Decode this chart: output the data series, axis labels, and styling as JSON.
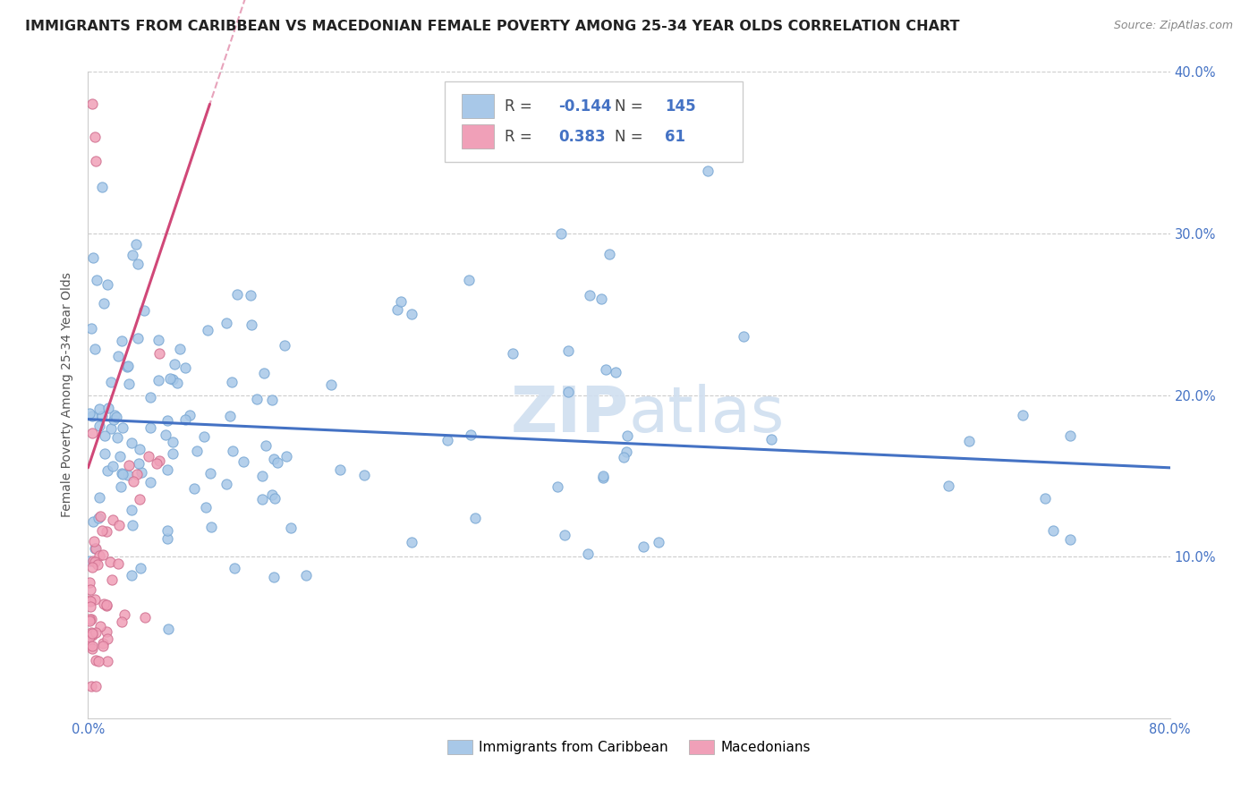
{
  "title": "IMMIGRANTS FROM CARIBBEAN VS MACEDONIAN FEMALE POVERTY AMONG 25-34 YEAR OLDS CORRELATION CHART",
  "source": "Source: ZipAtlas.com",
  "ylabel": "Female Poverty Among 25-34 Year Olds",
  "watermark": "ZIPatlas",
  "xlim": [
    0,
    0.8
  ],
  "ylim": [
    0,
    0.4
  ],
  "xticks": [
    0.0,
    0.1,
    0.2,
    0.3,
    0.4,
    0.5,
    0.6,
    0.7,
    0.8
  ],
  "yticks": [
    0.0,
    0.1,
    0.2,
    0.3,
    0.4
  ],
  "xtick_labels_show": [
    "0.0%",
    "",
    "",
    "",
    "",
    "",
    "",
    "",
    "80.0%"
  ],
  "ytick_labels_right": [
    "",
    "10.0%",
    "20.0%",
    "30.0%",
    "40.0%"
  ],
  "legend_R1": "-0.144",
  "legend_N1": "145",
  "legend_R2": "0.383",
  "legend_N2": "61",
  "series1_color": "#a8c8e8",
  "series2_color": "#f0a0b8",
  "trendline1_color": "#4472c4",
  "trendline2_color": "#d04878",
  "series1_label": "Immigrants from Caribbean",
  "series2_label": "Macedonians",
  "legend_text_color": "#4472c4",
  "legend_box_color": "#dddddd",
  "background_color": "#ffffff",
  "title_fontsize": 11.5,
  "trendline1_x": [
    0.0,
    0.8
  ],
  "trendline1_y": [
    0.185,
    0.155
  ],
  "trendline2_x": [
    0.0,
    0.09
  ],
  "trendline2_y": [
    0.155,
    0.38
  ],
  "seed1": 777,
  "seed2": 42,
  "n1": 145,
  "n2": 61
}
